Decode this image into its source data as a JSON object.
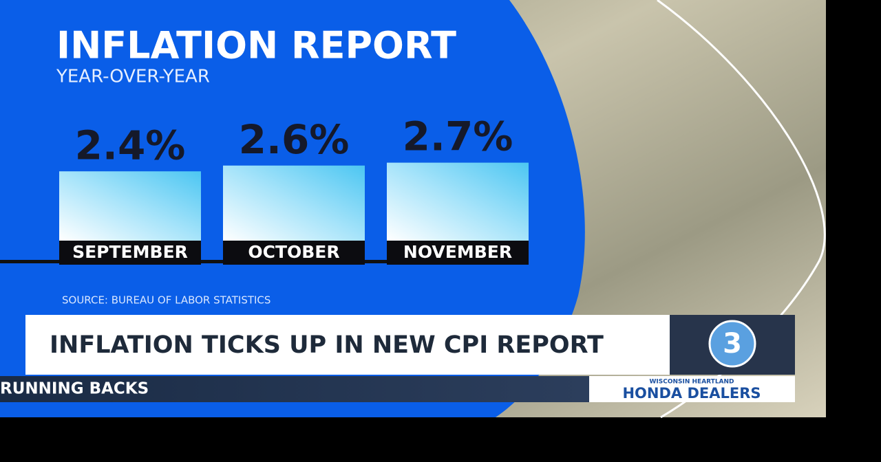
{
  "chart_data": {
    "type": "bar",
    "title": "INFLATION REPORT",
    "subtitle": "YEAR-OVER-YEAR",
    "categories": [
      "SEPTEMBER",
      "OCTOBER",
      "NOVEMBER"
    ],
    "values": [
      2.4,
      2.6,
      2.7
    ],
    "value_labels": [
      "2.4%",
      "2.6%",
      "2.7%"
    ],
    "source": "SOURCE: BUREAU OF LABOR STATISTICS"
  },
  "headline": "INFLATION TICKS UP IN NEW CPI REPORT",
  "logo": "3",
  "ticker": "RUNNING BACKS",
  "sponsor": {
    "tagline": "WISCONSIN HEARTLAND",
    "name": "HONDA DEALERS"
  }
}
